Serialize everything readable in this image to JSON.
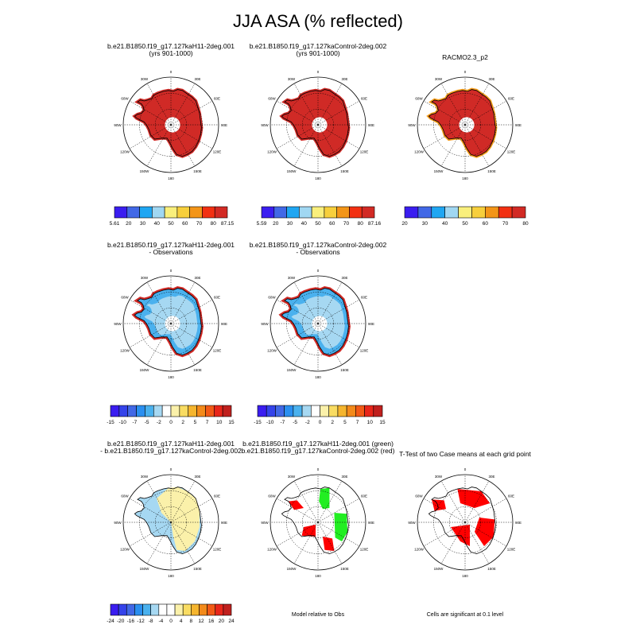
{
  "title": "JJA ASA (% reflected)",
  "colors": {
    "high_red": "#d02a26",
    "obs_blue": "#4ab1ee",
    "ice_blue": "#a6d8f2",
    "ice_yellow": "#fbf1aa",
    "model_green": "#22ee22",
    "sig_red": "#ff0000",
    "orange_edge": "#f59b1a"
  },
  "lon_labels": [
    "0",
    "30E",
    "60E",
    "90E",
    "120E",
    "150E",
    "180",
    "150W",
    "120W",
    "90W",
    "60W",
    "30W"
  ],
  "panels": [
    {
      "id": "p1",
      "title_lines": [
        "b.e21.B1850.f19_g17.127kaH11-2deg.001",
        "(yrs 901-1000)"
      ]
    },
    {
      "id": "p2",
      "title_lines": [
        "b.e21.B1850.f19_g17.127kaControl-2deg.002",
        "(yrs 901-1000)"
      ]
    },
    {
      "id": "p3",
      "title_lines": [
        "RACMO2.3_p2"
      ]
    },
    {
      "id": "p4",
      "title_lines": [
        "b.e21.B1850.f19_g17.127kaH11-2deg.001",
        "- Observations"
      ]
    },
    {
      "id": "p5",
      "title_lines": [
        "b.e21.B1850.f19_g17.127kaControl-2deg.002",
        "- Observations"
      ]
    },
    {
      "id": "p6",
      "title_lines": [
        "b.e21.B1850.f19_g17.127kaH11-2deg.001",
        "- b.e21.B1850.f19_g17.127kaControl-2deg.002"
      ]
    },
    {
      "id": "p7",
      "title_lines": [
        "b.e21.B1850.f19_g17.127kaH11-2deg.001 (green)",
        "b.e21.B1850.f19_g17.127kaControl-2deg.002 (red)"
      ]
    },
    {
      "id": "p8",
      "title_lines": [
        "T-Test of two Case means at each grid point"
      ]
    }
  ],
  "colorbars": [
    {
      "id": "cb1",
      "colors": [
        "#3a1df0",
        "#4168e6",
        "#1fa6f2",
        "#a0d7f2",
        "#f9ef7c",
        "#f7cf3c",
        "#f39518",
        "#f23012",
        "#d22a24"
      ],
      "labels": [
        "5.61",
        "20",
        "30",
        "40",
        "50",
        "60",
        "70",
        "80",
        "87.15"
      ]
    },
    {
      "id": "cb2",
      "colors": [
        "#3a1df0",
        "#4168e6",
        "#1fa6f2",
        "#a0d7f2",
        "#f9ef7c",
        "#f7cf3c",
        "#f39518",
        "#f23012",
        "#d22a24"
      ],
      "labels": [
        "5.59",
        "20",
        "30",
        "40",
        "50",
        "60",
        "70",
        "80",
        "87.16"
      ]
    },
    {
      "id": "cb3",
      "colors": [
        "#3a1df0",
        "#4168e6",
        "#1fa6f2",
        "#a0d7f2",
        "#f9ef7c",
        "#f7cf3c",
        "#f39518",
        "#f23012",
        "#d22a24"
      ],
      "labels": [
        "20",
        "30",
        "40",
        "50",
        "60",
        "70",
        "80"
      ]
    },
    {
      "id": "cb4",
      "colors": [
        "#3a1df0",
        "#3443ea",
        "#4168e6",
        "#2a8ff0",
        "#4ab1ee",
        "#a6d8f2",
        "#ffffff",
        "#fbf1aa",
        "#f9dc62",
        "#f5b52e",
        "#f38a1a",
        "#f25a16",
        "#e8261a",
        "#c0201e"
      ],
      "labels": [
        "-15",
        "-10",
        "-7",
        "-5",
        "-2",
        "0",
        "2",
        "5",
        "7",
        "10",
        "15"
      ]
    },
    {
      "id": "cb5",
      "colors": [
        "#3a1df0",
        "#3443ea",
        "#4168e6",
        "#2a8ff0",
        "#4ab1ee",
        "#a6d8f2",
        "#ffffff",
        "#fbf1aa",
        "#f9dc62",
        "#f5b52e",
        "#f38a1a",
        "#f25a16",
        "#e8261a",
        "#c0201e"
      ],
      "labels": [
        "-15",
        "-10",
        "-7",
        "-5",
        "-2",
        "0",
        "2",
        "5",
        "7",
        "10",
        "15"
      ]
    },
    {
      "id": "cb6",
      "colors": [
        "#3a1df0",
        "#3443ea",
        "#4168e6",
        "#2a8ff0",
        "#4ab1ee",
        "#a6d8f2",
        "#ffffff",
        "#ffffff",
        "#fbf1aa",
        "#f9dc62",
        "#f5b52e",
        "#f38a1a",
        "#f25a16",
        "#e8261a",
        "#c0201e"
      ],
      "labels": [
        "-24",
        "-20",
        "-16",
        "-12",
        "-8",
        "-4",
        "0",
        "4",
        "8",
        "12",
        "16",
        "20",
        "24"
      ]
    }
  ],
  "notes": {
    "model_relative": "Model relative to Obs",
    "significance": "Cells are significant at 0.1 level"
  },
  "chart_data": {
    "type": "heatmap",
    "title": "JJA ASA (% reflected)",
    "projection": "south-polar-stereographic",
    "grid": true,
    "map_labels": [
      "0",
      "30E",
      "60E",
      "90E",
      "120E",
      "150E",
      "180",
      "150W",
      "120W",
      "90W",
      "60W",
      "30W"
    ],
    "panels": [
      {
        "name": "b.e21.B1850.f19_g17.127kaH11-2deg.001 (yrs 901-1000)",
        "range": [
          5.61,
          87.15
        ],
        "levels": [
          20,
          30,
          40,
          50,
          60,
          70,
          80
        ],
        "field": "albedo",
        "dominant_level": "80-87.15"
      },
      {
        "name": "b.e21.B1850.f19_g17.127kaControl-2deg.002 (yrs 901-1000)",
        "range": [
          5.59,
          87.16
        ],
        "levels": [
          20,
          30,
          40,
          50,
          60,
          70,
          80
        ],
        "field": "albedo",
        "dominant_level": "80-87.16"
      },
      {
        "name": "RACMO2.3_p2",
        "levels": [
          20,
          30,
          40,
          50,
          60,
          70,
          80
        ],
        "field": "albedo",
        "dominant_level": ">80"
      },
      {
        "name": "b.e21.B1850.f19_g17.127kaH11-2deg.001 - Observations",
        "levels": [
          -15,
          -10,
          -7,
          -5,
          -2,
          0,
          2,
          5,
          7,
          10,
          15
        ],
        "field": "difference",
        "dominant_level": "-5 to -2"
      },
      {
        "name": "b.e21.B1850.f19_g17.127kaControl-2deg.002 - Observations",
        "levels": [
          -15,
          -10,
          -7,
          -5,
          -2,
          0,
          2,
          5,
          7,
          10,
          15
        ],
        "field": "difference",
        "dominant_level": "-5 to -2"
      },
      {
        "name": "b.e21.B1850.f19_g17.127kaH11-2deg.001 - b.e21.B1850.f19_g17.127kaControl-2deg.002",
        "levels": [
          -24,
          -20,
          -16,
          -12,
          -8,
          -4,
          0,
          4,
          8,
          12,
          16,
          20,
          24
        ],
        "field": "difference",
        "dominant_level": "-4 to 4"
      },
      {
        "name": "Model relative to Obs",
        "field": "categorical",
        "categories": [
          "b.e21.B1850.f19_g17.127kaH11-2deg.001 (green)",
          "b.e21.B1850.f19_g17.127kaControl-2deg.002 (red)"
        ]
      },
      {
        "name": "T-Test of two Case means at each grid point",
        "field": "significance",
        "note": "Cells are significant at 0.1 level"
      }
    ]
  }
}
